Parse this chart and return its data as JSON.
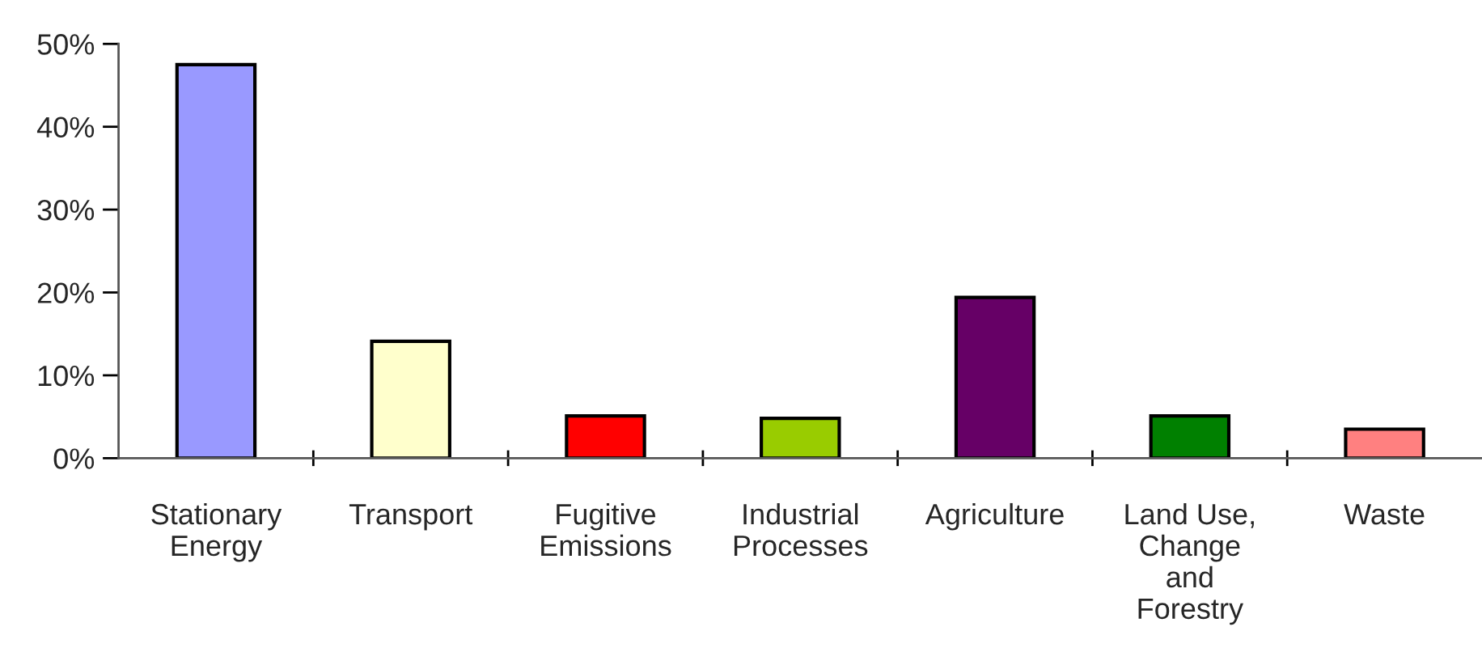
{
  "chart_data": {
    "type": "bar",
    "categories": [
      "Stationary\nEnergy",
      "Transport",
      "Fugitive\nEmissions",
      "Industrial\nProcesses",
      "Agriculture",
      "Land Use,\nChange\nand\nForestry",
      "Waste"
    ],
    "values": [
      47.5,
      14.1,
      5.1,
      4.8,
      19.4,
      5.1,
      3.5
    ],
    "colors": [
      "#9999ff",
      "#ffffcc",
      "#ff0000",
      "#99cc00",
      "#660066",
      "#008000",
      "#ff8080"
    ],
    "ylim": [
      0,
      50
    ],
    "yticks": [
      {
        "value": 0,
        "label": "0%"
      },
      {
        "value": 10,
        "label": "10%"
      },
      {
        "value": 20,
        "label": "20%"
      },
      {
        "value": 30,
        "label": "30%"
      },
      {
        "value": 40,
        "label": "40%"
      },
      {
        "value": 50,
        "label": "50%"
      }
    ],
    "grid": false,
    "legend": false
  }
}
